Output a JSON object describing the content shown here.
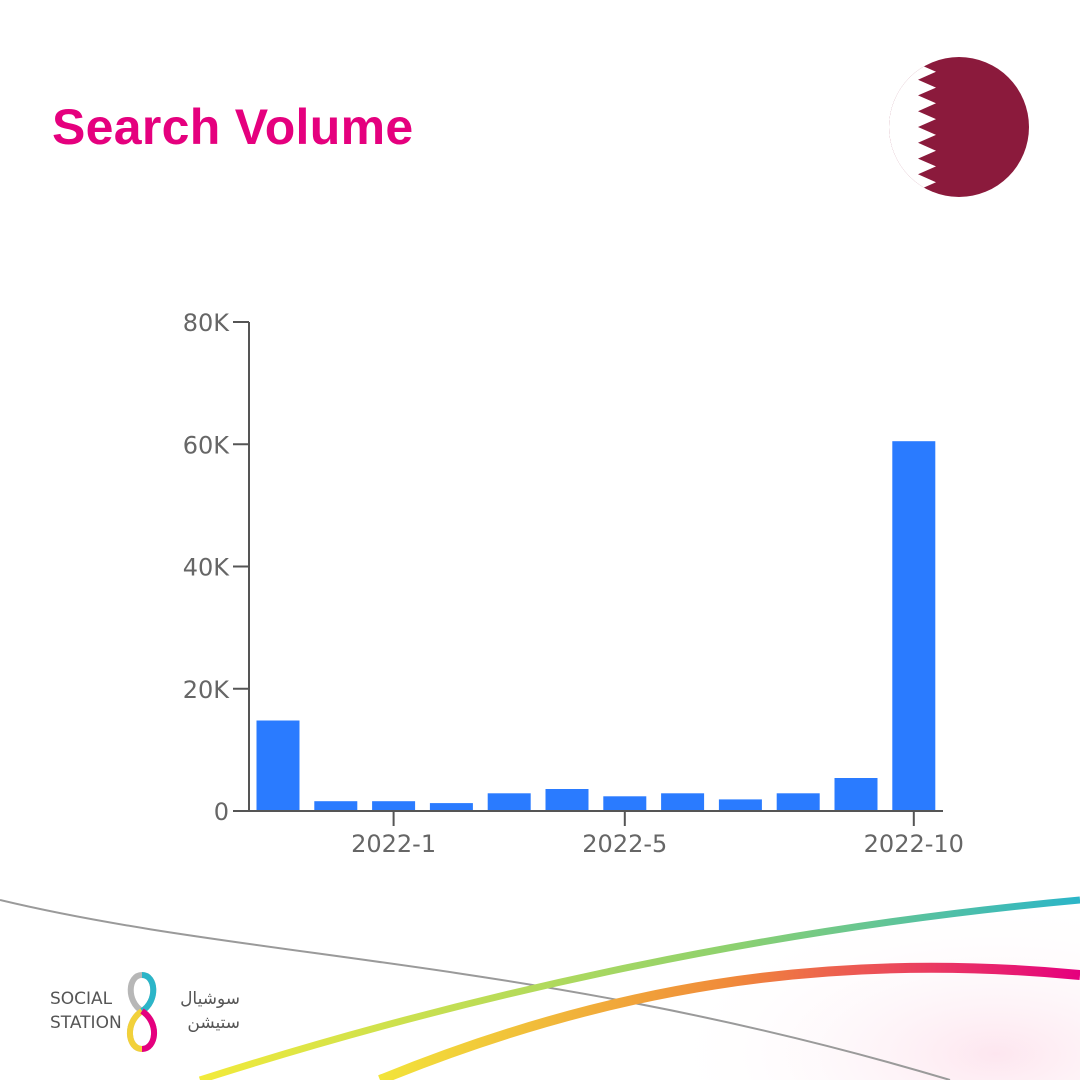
{
  "header": {
    "title": "Search Volume"
  },
  "colors": {
    "title": "#e5007e",
    "bar": "#2a7bff",
    "flag_maroon": "#8b1a3c"
  },
  "chart_data": {
    "type": "bar",
    "categories": [
      "2021-11",
      "2021-12",
      "2022-1",
      "2022-2",
      "2022-3",
      "2022-4",
      "2022-5",
      "2022-6",
      "2022-7",
      "2022-8",
      "2022-9",
      "2022-10"
    ],
    "values": [
      14800,
      1600,
      1600,
      1300,
      2900,
      3600,
      2400,
      2900,
      1900,
      2900,
      5400,
      60500
    ],
    "xticks": [
      "2022-1",
      "2022-5",
      "2022-10"
    ],
    "yticks": [
      "0",
      "20K",
      "40K",
      "60K",
      "80K"
    ],
    "ylim": [
      0,
      80000
    ],
    "title": "",
    "xlabel": "",
    "ylabel": "",
    "grid": false,
    "legend": "none"
  },
  "brand": {
    "line1": "SOCIAL",
    "line2": "STATION",
    "arabic1": "سوشيال",
    "arabic2": "ستيشن"
  }
}
